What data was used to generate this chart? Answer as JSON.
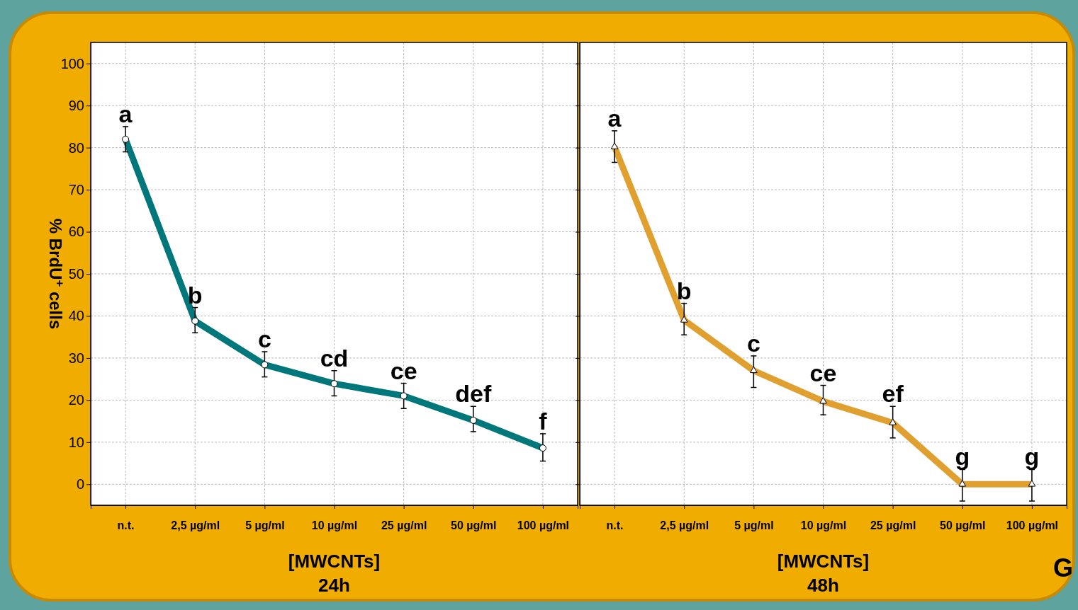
{
  "chart_data": [
    {
      "type": "line",
      "xlabel": "[MWCNTs]\n24h",
      "ylabel": "% BrdU$^{+}$ cells",
      "categories": [
        "n.t.",
        "2,5 µg/ml",
        "5 µg/ml",
        "10 µg/ml",
        "25 µg/ml",
        "50 µg/ml",
        "100 µg/ml"
      ],
      "series": [
        {
          "color": "#00777a",
          "values": [
            82,
            38.8,
            28.4,
            23.9,
            21,
            15.2,
            8.6
          ],
          "errors": [
            [
              79,
              85
            ],
            [
              36,
              42
            ],
            [
              25.5,
              31.5
            ],
            [
              21,
              27
            ],
            [
              18,
              24
            ],
            [
              12.5,
              18.5
            ],
            [
              5.5,
              12
            ]
          ]
        }
      ],
      "ylim": [
        -5,
        105
      ],
      "yticks": [
        0,
        10,
        20,
        30,
        40,
        50,
        60,
        70,
        80,
        90,
        100
      ],
      "grid": true,
      "marker": "circle",
      "line_style": "solid",
      "annotations": [
        {
          "text": "a",
          "x": "n.t.",
          "y": 85
        },
        {
          "text": "b",
          "x": "2,5 µg/ml",
          "y": 42
        },
        {
          "text": "c",
          "x": "5 µg/ml",
          "y": 31.5
        },
        {
          "text": "cd",
          "x": "10 µg/ml",
          "y": 27
        },
        {
          "text": "ce",
          "x": "25 µg/ml",
          "y": 24
        },
        {
          "text": "def",
          "x": "50 µg/ml",
          "y": 18.5
        },
        {
          "text": "f",
          "x": "100 µg/ml",
          "y": 12
        }
      ]
    },
    {
      "type": "line",
      "xlabel": "[MWCNTs]\n48h",
      "categories": [
        "n.t.",
        "2,5 µg/ml",
        "5 µg/ml",
        "10 µg/ml",
        "25 µg/ml",
        "50 µg/ml",
        "100 µg/ml"
      ],
      "series": [
        {
          "color": "#e0a030",
          "values": [
            80.2,
            39,
            27,
            19.7,
            14.6,
            0,
            0
          ],
          "errors": [
            [
              76.5,
              84
            ],
            [
              35.5,
              43
            ],
            [
              23,
              30.5
            ],
            [
              16.5,
              23.5
            ],
            [
              11,
              18.5
            ],
            [
              -4,
              3.5
            ],
            [
              -4,
              3.5
            ]
          ]
        }
      ],
      "ylim": [
        -5,
        105
      ],
      "yticks": [
        0,
        10,
        20,
        30,
        40,
        50,
        60,
        70,
        80,
        90,
        100
      ],
      "grid": true,
      "marker": "triangle",
      "line_style": "solid",
      "tick_labels": "x",
      "annotations": [
        {
          "text": "a",
          "x": "n.t.",
          "y": 84
        },
        {
          "text": "b",
          "x": "2,5 µg/ml",
          "y": 43
        },
        {
          "text": "c",
          "x": "5 µg/ml",
          "y": 30.5
        },
        {
          "text": "ce",
          "x": "10 µg/ml",
          "y": 23.5
        },
        {
          "text": "ef",
          "x": "25 µg/ml",
          "y": 18.5
        },
        {
          "text": "g",
          "x": "50 µg/ml",
          "y": 3.5
        },
        {
          "text": "g",
          "x": "100 µg/ml",
          "y": 3.5
        },
        "G"
      ]
    }
  ]
}
